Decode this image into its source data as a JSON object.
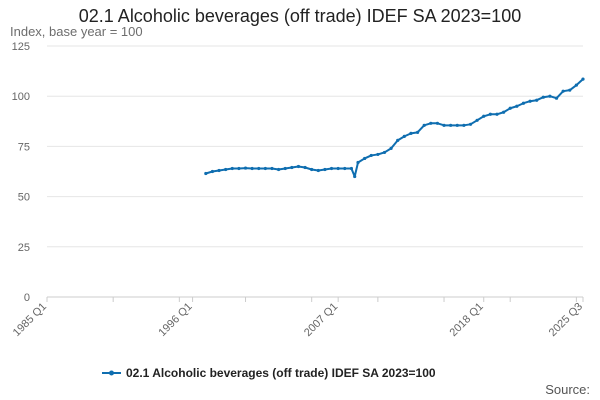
{
  "title": "02.1 Alcoholic beverages (off trade) IDEF SA 2023=100",
  "subtitle": "Index, base year = 100",
  "source": "Source:",
  "colors": {
    "series": "#0f6eb0",
    "grid": "#e6e6e6",
    "axis": "#cccccc"
  },
  "chart_data": {
    "type": "line",
    "title": "02.1 Alcoholic beverages (off trade) IDEF SA 2023=100",
    "ylabel": "Index, base year = 100",
    "xlabel": "",
    "ylim": [
      0,
      125
    ],
    "yticks": [
      0,
      25,
      50,
      75,
      100,
      125
    ],
    "xlim": [
      "1985 Q1",
      "2025 Q3"
    ],
    "xticks": [
      "1985 Q1",
      "1996 Q1",
      "2007 Q1",
      "2018 Q1",
      "2025 Q3"
    ],
    "grid": true,
    "legend": "bottom",
    "series": [
      {
        "name": "02.1 Alcoholic beverages (off trade) IDEF SA 2023=100",
        "x": [
          "1997 Q1",
          "1997 Q3",
          "1998 Q1",
          "1998 Q3",
          "1999 Q1",
          "1999 Q3",
          "2000 Q1",
          "2000 Q3",
          "2001 Q1",
          "2001 Q3",
          "2002 Q1",
          "2002 Q3",
          "2003 Q1",
          "2003 Q3",
          "2004 Q1",
          "2004 Q3",
          "2005 Q1",
          "2005 Q3",
          "2006 Q1",
          "2006 Q3",
          "2007 Q1",
          "2007 Q3",
          "2008 Q1",
          "2008 Q2",
          "2008 Q3",
          "2009 Q1",
          "2009 Q3",
          "2010 Q1",
          "2010 Q3",
          "2011 Q1",
          "2011 Q3",
          "2012 Q1",
          "2012 Q3",
          "2013 Q1",
          "2013 Q3",
          "2014 Q1",
          "2014 Q3",
          "2015 Q1",
          "2015 Q3",
          "2016 Q1",
          "2016 Q3",
          "2017 Q1",
          "2017 Q3",
          "2018 Q1",
          "2018 Q3",
          "2019 Q1",
          "2019 Q3",
          "2020 Q1",
          "2020 Q3",
          "2021 Q1",
          "2021 Q3",
          "2022 Q1",
          "2022 Q3",
          "2023 Q1",
          "2023 Q3",
          "2024 Q1",
          "2024 Q3",
          "2025 Q1",
          "2025 Q3"
        ],
        "values": [
          61.5,
          62.5,
          63,
          63.5,
          64,
          64,
          64.2,
          64,
          64,
          64,
          64,
          63.5,
          64,
          64.5,
          65,
          64.5,
          63.5,
          63,
          63.5,
          64,
          64,
          64,
          64,
          60,
          67,
          69,
          70.5,
          71,
          72,
          74,
          78,
          80,
          81.5,
          82,
          85.5,
          86.5,
          86.5,
          85.5,
          85.5,
          85.5,
          85.5,
          86,
          88,
          90,
          91,
          91,
          92,
          94,
          95,
          96.5,
          97.5,
          98,
          99.5,
          100,
          99,
          102.5,
          103,
          105.5,
          108.5
        ]
      }
    ]
  }
}
